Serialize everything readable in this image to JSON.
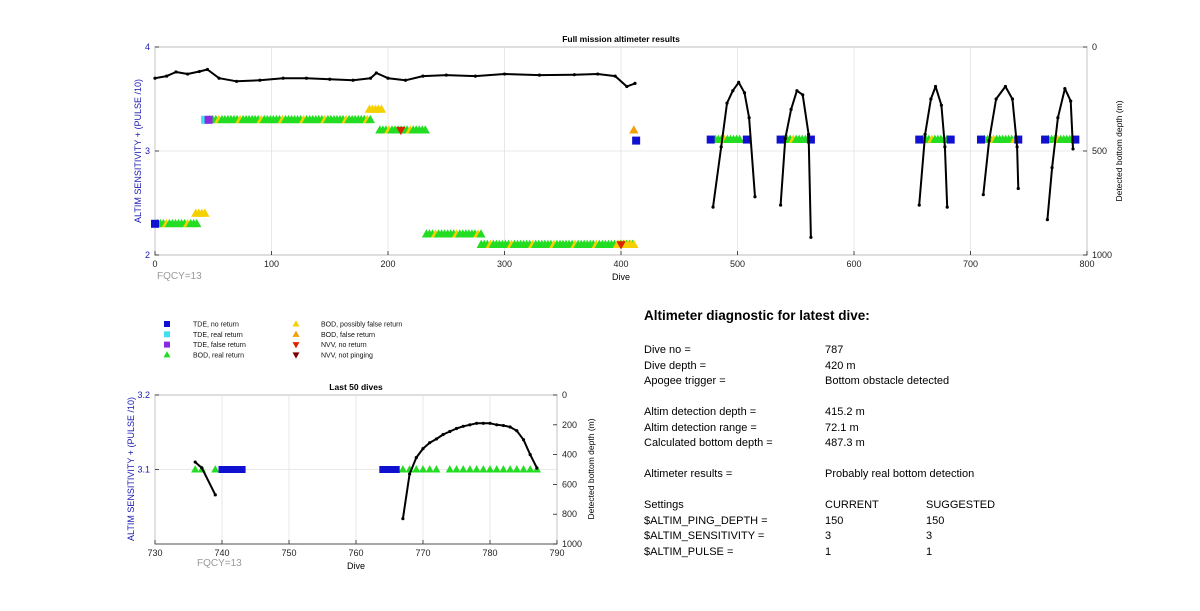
{
  "top_chart": {
    "title": "Full mission altimeter results",
    "ylabel_left": "ALTIM SENSITIVITY + (PULSE /10)",
    "ylabel_right": "Detected bottom depth (m)",
    "xlabel": "Dive",
    "corner_text": "FQCY=13",
    "x_ticks": [
      "0",
      "100",
      "200",
      "300",
      "400",
      "500",
      "600",
      "700",
      "800"
    ],
    "y_left_ticks": [
      "2",
      "3",
      "4"
    ],
    "y_right_ticks": [
      "0",
      "500",
      "1000"
    ]
  },
  "bottom_chart": {
    "title": "Last 50 dives",
    "ylabel_left": "ALTIM SENSITIVITY + (PULSE /10)",
    "ylabel_right": "Detected bottom depth (m)",
    "xlabel": "Dive",
    "corner_text": "FQCY=13",
    "x_ticks": [
      "730",
      "740",
      "750",
      "760",
      "770",
      "780",
      "790"
    ],
    "y_left_ticks": [
      "3.1",
      "3.2"
    ],
    "y_right_ticks": [
      "0",
      "200",
      "400",
      "600",
      "800",
      "1000"
    ]
  },
  "legend": [
    {
      "label": "TDE, no return",
      "marker": "square",
      "color": "#1010d0"
    },
    {
      "label": "TDE, real return",
      "marker": "square",
      "color": "#40e0f0"
    },
    {
      "label": "TDE, false return",
      "marker": "square",
      "color": "#8a2be2"
    },
    {
      "label": "BOD, real return",
      "marker": "triangle-up",
      "color": "#22dd22"
    },
    {
      "label": "BOD, possibly false return",
      "marker": "triangle-up",
      "color": "#f5d000"
    },
    {
      "label": "BOD, false return",
      "marker": "triangle-up",
      "color": "#f0a000"
    },
    {
      "label": "NVV, no return",
      "marker": "triangle-down",
      "color": "#dd2200"
    },
    {
      "label": "NVV, not pinging",
      "marker": "triangle-down",
      "color": "#7a0000"
    }
  ],
  "diagnostic": {
    "title": "Altimeter diagnostic for latest dive:",
    "dive_no": {
      "label": "Dive no =",
      "value": "787"
    },
    "dive_depth": {
      "label": "Dive depth =",
      "value": "420 m"
    },
    "apogee": {
      "label": "Apogee trigger =",
      "value": "Bottom obstacle detected"
    },
    "altim_detect_depth": {
      "label": "Altim detection depth =",
      "value": "415.2 m"
    },
    "altim_detect_range": {
      "label": "Altim detection range =",
      "value": "72.1 m"
    },
    "calc_bottom": {
      "label": "Calculated bottom depth =",
      "value": "487.3 m"
    },
    "results": {
      "label": "Altimeter results =",
      "value": "Probably real bottom detection"
    },
    "settings_header": {
      "label": "Settings",
      "current": "CURRENT",
      "suggested": "SUGGESTED"
    },
    "settings": [
      {
        "label": "$ALTIM_PING_DEPTH =",
        "current": "150",
        "suggested": "150"
      },
      {
        "label": "$ALTIM_SENSITIVITY =",
        "current": "3",
        "suggested": "3"
      },
      {
        "label": "$ALTIM_PULSE =",
        "current": "1",
        "suggested": "1"
      }
    ]
  },
  "chart_data": [
    {
      "type": "scatter",
      "title": "Full mission altimeter results",
      "xlabel": "Dive",
      "ylabel": "ALTIM SENSITIVITY + (PULSE /10)",
      "y2label": "Detected bottom depth (m)",
      "xlim": [
        0,
        800
      ],
      "ylim": [
        2,
        4
      ],
      "y2lim": [
        1000,
        0
      ],
      "grid": true,
      "marker_series": [
        {
          "name": "TDE, no return",
          "marker": "square",
          "color": "#1010d0",
          "points": [
            [
              0,
              2.3
            ],
            [
              413,
              3.1
            ],
            [
              477,
              3.11
            ],
            [
              508,
              3.11
            ],
            [
              537,
              3.11
            ],
            [
              563,
              3.11
            ],
            [
              656,
              3.11
            ],
            [
              683,
              3.11
            ],
            [
              709,
              3.11
            ],
            [
              741,
              3.11
            ],
            [
              764,
              3.11
            ],
            [
              790,
              3.11
            ]
          ]
        },
        {
          "name": "TDE, real return",
          "marker": "square",
          "color": "#40e0f0",
          "points": [
            [
              43,
              3.3
            ]
          ]
        },
        {
          "name": "TDE, false return",
          "marker": "square",
          "color": "#8a2be2",
          "points": [
            [
              46,
              3.3
            ]
          ]
        },
        {
          "name": "NVV, no return",
          "marker": "triangle-down",
          "color": "#dd2200",
          "points": [
            [
              211,
              3.2
            ],
            [
              400,
              2.1
            ]
          ]
        }
      ],
      "runs": [
        {
          "name": "BOD, real return",
          "color": "#22dd22",
          "y": 2.3,
          "x_start": 2,
          "x_end": 38,
          "mixed_with": "BOD, possibly false return"
        },
        {
          "name": "BOD, possibly false return",
          "color": "#f5d000",
          "y": 2.4,
          "x_start": 35,
          "x_end": 44
        },
        {
          "name": "BOD, real return",
          "color": "#22dd22",
          "y": 3.3,
          "x_start": 47,
          "x_end": 185,
          "mixed_with": "BOD, possibly false return"
        },
        {
          "name": "BOD, possibly false return",
          "color": "#f5d000",
          "y": 3.4,
          "x_start": 184,
          "x_end": 195
        },
        {
          "name": "BOD, real return",
          "color": "#22dd22",
          "y": 3.2,
          "x_start": 193,
          "x_end": 232,
          "mixed_with": "BOD, possibly false return"
        },
        {
          "name": "BOD, real return",
          "color": "#22dd22",
          "y": 2.2,
          "x_start": 233,
          "x_end": 282,
          "mixed_with": "BOD, possibly false return"
        },
        {
          "name": "BOD, real return",
          "color": "#22dd22",
          "y": 2.1,
          "x_start": 280,
          "x_end": 412,
          "mixed_with": "BOD, possibly false return"
        },
        {
          "name": "BOD, possibly false return",
          "color": "#f5d000",
          "y": 2.1,
          "x_start": 398,
          "x_end": 412
        },
        {
          "name": "BOD, false return",
          "color": "#f0a000",
          "y": 3.2,
          "x_start": 411,
          "x_end": 411
        },
        {
          "name": "BOD, real return",
          "color": "#22dd22",
          "y": 3.11,
          "x_start": 481,
          "x_end": 503,
          "mixed_with": "BOD, possibly false return"
        },
        {
          "name": "BOD, real return",
          "color": "#22dd22",
          "y": 3.11,
          "x_start": 540,
          "x_end": 560,
          "mixed_with": "BOD, possibly false return"
        },
        {
          "name": "BOD, real return",
          "color": "#22dd22",
          "y": 3.11,
          "x_start": 659,
          "x_end": 680,
          "mixed_with": "BOD, possibly false return"
        },
        {
          "name": "BOD, real return",
          "color": "#22dd22",
          "y": 3.11,
          "x_start": 712,
          "x_end": 738,
          "mixed_with": "BOD, possibly false return"
        },
        {
          "name": "BOD, real return",
          "color": "#22dd22",
          "y": 3.11,
          "x_start": 767,
          "x_end": 787,
          "mixed_with": "BOD, possibly false return"
        }
      ],
      "depth_line": {
        "axis": "right",
        "segments": [
          [
            [
              0,
              150
            ],
            [
              10,
              140
            ],
            [
              18,
              120
            ],
            [
              28,
              130
            ],
            [
              38,
              118
            ],
            [
              45,
              108
            ],
            [
              55,
              150
            ],
            [
              70,
              165
            ],
            [
              90,
              160
            ],
            [
              110,
              150
            ],
            [
              130,
              150
            ],
            [
              150,
              155
            ],
            [
              170,
              160
            ],
            [
              185,
              150
            ],
            [
              190,
              125
            ],
            [
              200,
              150
            ],
            [
              215,
              160
            ],
            [
              230,
              140
            ],
            [
              250,
              135
            ],
            [
              275,
              140
            ],
            [
              300,
              130
            ],
            [
              330,
              135
            ],
            [
              360,
              133
            ],
            [
              380,
              130
            ],
            [
              395,
              140
            ],
            [
              405,
              190
            ],
            [
              412,
              175
            ]
          ],
          [
            [
              479,
              770
            ],
            [
              486,
              480
            ],
            [
              491,
              270
            ],
            [
              496,
              210
            ],
            [
              501,
              170
            ],
            [
              506,
              220
            ],
            [
              510,
              340
            ],
            [
              515,
              720
            ]
          ],
          [
            [
              537,
              760
            ],
            [
              541,
              440
            ],
            [
              546,
              300
            ],
            [
              551,
              210
            ],
            [
              556,
              230
            ],
            [
              561,
              420
            ],
            [
              563,
              915
            ]
          ],
          [
            [
              656,
              760
            ],
            [
              661,
              420
            ],
            [
              666,
              250
            ],
            [
              670,
              190
            ],
            [
              675,
              280
            ],
            [
              678,
              480
            ],
            [
              680,
              770
            ]
          ],
          [
            [
              711,
              710
            ],
            [
              716,
              450
            ],
            [
              722,
              250
            ],
            [
              730,
              190
            ],
            [
              736,
              250
            ],
            [
              740,
              480
            ],
            [
              741,
              680
            ]
          ],
          [
            [
              766,
              830
            ],
            [
              770,
              580
            ],
            [
              775,
              340
            ],
            [
              781,
              200
            ],
            [
              786,
              260
            ],
            [
              788,
              490
            ]
          ]
        ]
      }
    },
    {
      "type": "scatter",
      "title": "Last 50 dives",
      "xlabel": "Dive",
      "ylabel": "ALTIM SENSITIVITY + (PULSE /10)",
      "y2label": "Detected bottom depth (m)",
      "xlim": [
        730,
        790
      ],
      "ylim": [
        3.0,
        3.2
      ],
      "y2lim": [
        1000,
        0
      ],
      "grid": true,
      "marker_series": [
        {
          "name": "BOD, real return",
          "marker": "triangle-up",
          "color": "#22dd22",
          "points": [
            [
              736,
              3.1
            ],
            [
              737,
              3.1
            ],
            [
              739,
              3.1
            ],
            [
              767,
              3.1
            ],
            [
              768,
              3.1
            ],
            [
              769,
              3.1
            ],
            [
              770,
              3.1
            ],
            [
              771,
              3.1
            ],
            [
              772,
              3.1
            ],
            [
              774,
              3.1
            ],
            [
              775,
              3.1
            ],
            [
              776,
              3.1
            ],
            [
              777,
              3.1
            ],
            [
              778,
              3.1
            ],
            [
              779,
              3.1
            ],
            [
              780,
              3.1
            ],
            [
              781,
              3.1
            ],
            [
              782,
              3.1
            ],
            [
              783,
              3.1
            ],
            [
              784,
              3.1
            ],
            [
              785,
              3.1
            ],
            [
              786,
              3.1
            ],
            [
              787,
              3.1
            ]
          ]
        },
        {
          "name": "TDE, no return",
          "marker": "square",
          "color": "#1010d0",
          "points": [
            [
              740,
              3.1
            ],
            [
              741,
              3.1
            ],
            [
              742,
              3.1
            ],
            [
              743,
              3.1
            ],
            [
              764,
              3.1
            ],
            [
              765,
              3.1
            ],
            [
              766,
              3.1
            ]
          ]
        }
      ],
      "depth_line": {
        "axis": "right",
        "segments": [
          [
            [
              736,
              450
            ],
            [
              737,
              490
            ],
            [
              739,
              670
            ]
          ],
          [
            [
              767,
              830
            ],
            [
              768,
              530
            ],
            [
              769,
              420
            ],
            [
              770,
              360
            ],
            [
              771,
              320
            ],
            [
              772,
              295
            ],
            [
              773,
              265
            ],
            [
              774,
              245
            ],
            [
              775,
              225
            ],
            [
              776,
              210
            ],
            [
              777,
              200
            ],
            [
              778,
              190
            ],
            [
              779,
              190
            ],
            [
              780,
              190
            ],
            [
              781,
              200
            ],
            [
              782,
              205
            ],
            [
              783,
              215
            ],
            [
              784,
              240
            ],
            [
              785,
              300
            ],
            [
              786,
              400
            ],
            [
              787,
              490
            ]
          ]
        ]
      }
    }
  ]
}
